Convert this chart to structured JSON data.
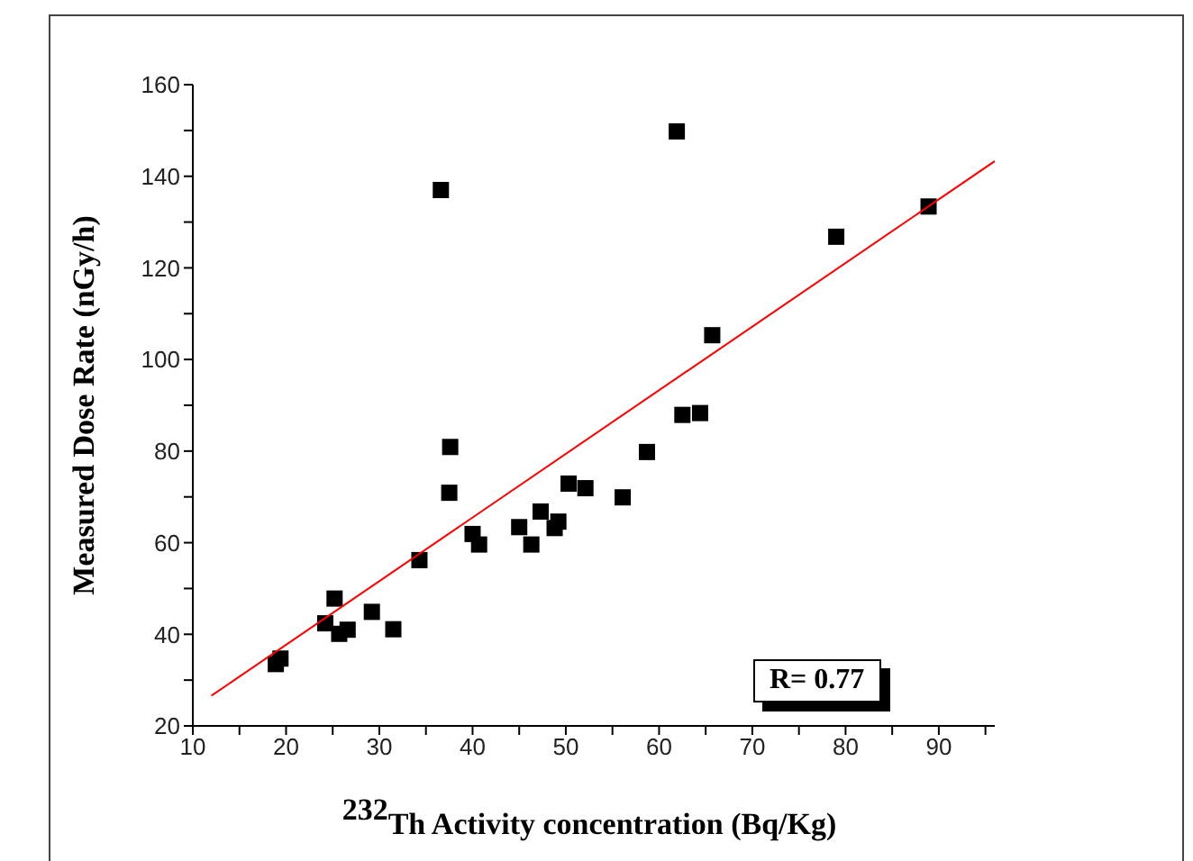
{
  "chart_data": {
    "type": "scatter",
    "xlabel": "$^{232}$Th Activity concentration (Bq/Kg)",
    "ylabel": "Measured Dose Rate (nGy/h)",
    "xlim": [
      10,
      96
    ],
    "ylim": [
      20,
      160
    ],
    "xticks": [
      10,
      {
        "value": 15,
        "label": null
      },
      20,
      {
        "value": 25,
        "label": null
      },
      30,
      {
        "value": 35,
        "label": null
      },
      40,
      {
        "value": 45,
        "label": null
      },
      50,
      {
        "value": 55,
        "label": null
      },
      60,
      {
        "value": 65,
        "label": null
      },
      70,
      {
        "value": 75,
        "label": null
      },
      80,
      {
        "value": 85,
        "label": null
      },
      90,
      {
        "value": 95,
        "label": null
      }
    ],
    "yticks": [
      20,
      {
        "value": 30,
        "label": null
      },
      40,
      {
        "value": 50,
        "label": null
      },
      60,
      {
        "value": 70,
        "label": null
      },
      80,
      {
        "value": 90,
        "label": null
      },
      100,
      {
        "value": 110,
        "label": null
      },
      120,
      {
        "value": 130,
        "label": null
      },
      140,
      {
        "value": 150,
        "label": null
      },
      160
    ],
    "marker": "square",
    "series": [
      {
        "color": "#000000",
        "x": [
          18.9,
          19.4,
          24.2,
          25.2,
          25.7,
          26.6,
          29.2,
          31.5,
          34.3,
          37.5,
          37.6,
          40.0,
          40.7,
          45.0,
          46.3,
          47.3,
          48.8,
          49.2,
          50.3,
          52.1,
          56.1,
          58.7,
          62.5,
          64.4,
          36.6,
          61.9,
          88.9,
          79.0,
          65.7
        ],
        "values": [
          33.5,
          34.7,
          42.4,
          47.8,
          40.1,
          41.0,
          44.9,
          41.1,
          56.2,
          70.9,
          80.9,
          61.9,
          59.6,
          63.4,
          59.6,
          66.8,
          63.2,
          64.6,
          72.9,
          71.9,
          69.9,
          79.8,
          87.9,
          88.3,
          137.0,
          149.8,
          133.4,
          126.8,
          105.3
        ]
      },
      {
        "type": "line",
        "color": "#ff0000",
        "line_style": "solid",
        "marker": "none",
        "x": [
          12,
          96
        ],
        "values": [
          26.6,
          143.3
        ]
      }
    ],
    "annotations": [
      "R= 0.77"
    ]
  }
}
